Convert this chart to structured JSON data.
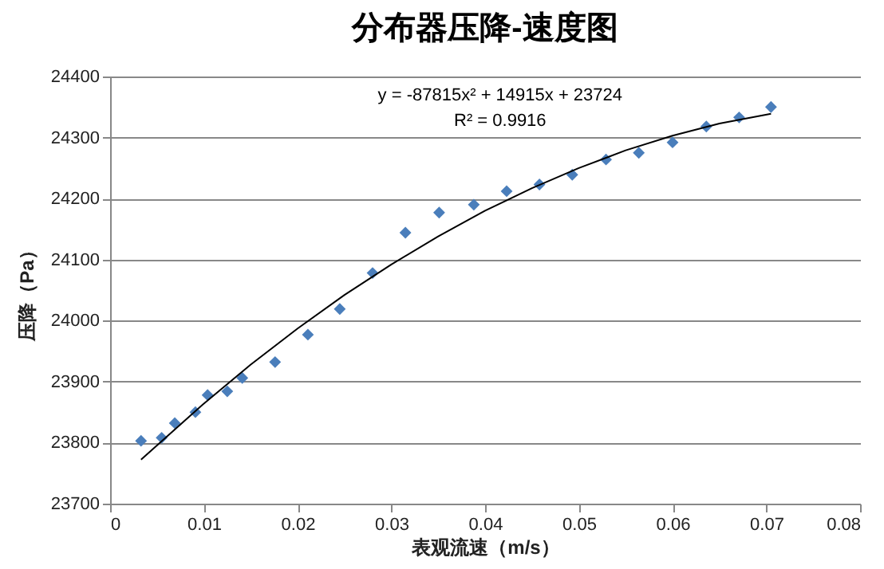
{
  "chart_data": {
    "type": "scatter",
    "title": "分布器压降-速度图",
    "xlabel": "表观流速（m/s）",
    "ylabel": "压降（Pa）",
    "annotations": [
      "y = -87815x² + 14915x + 23724",
      "R² = 0.9916"
    ],
    "xlim": [
      0,
      0.08
    ],
    "xticks": [
      0,
      0.01,
      0.02,
      0.03,
      0.04,
      0.05,
      0.06,
      0.07,
      0.08
    ],
    "ylim": [
      23700,
      24400
    ],
    "yticks": [
      23700,
      23800,
      23900,
      24000,
      24100,
      24200,
      24300,
      24400
    ],
    "grid": "y",
    "series": [
      {
        "marker": "diamond",
        "color": "#4a7ebb",
        "x": [
          0.0033,
          0.0055,
          0.0069,
          0.0091,
          0.0104,
          0.0125,
          0.0141,
          0.0176,
          0.0211,
          0.0245,
          0.028,
          0.0315,
          0.0351,
          0.0388,
          0.0423,
          0.0458,
          0.0493,
          0.0529,
          0.0564,
          0.06,
          0.0636,
          0.0671,
          0.0705
        ],
        "values": [
          23803,
          23808,
          23832,
          23850,
          23878,
          23884,
          23906,
          23932,
          23977,
          24019,
          24078,
          24144,
          24177,
          24190,
          24212,
          24223,
          24239,
          24264,
          24275,
          24292,
          24318,
          24333,
          24350
        ]
      },
      {
        "type": "line",
        "marker": "none",
        "line_style": "solid",
        "color": "#000000",
        "x": [
          0.0033,
          0.01,
          0.015,
          0.02,
          0.025,
          0.03,
          0.035,
          0.04,
          0.045,
          0.05,
          0.055,
          0.06,
          0.065,
          0.0705
        ],
        "values": [
          23772,
          23864,
          23928,
          23987,
          24042,
          24092,
          24138,
          24180,
          24217,
          24250,
          24279,
          24303,
          24323,
          24339
        ]
      }
    ]
  }
}
